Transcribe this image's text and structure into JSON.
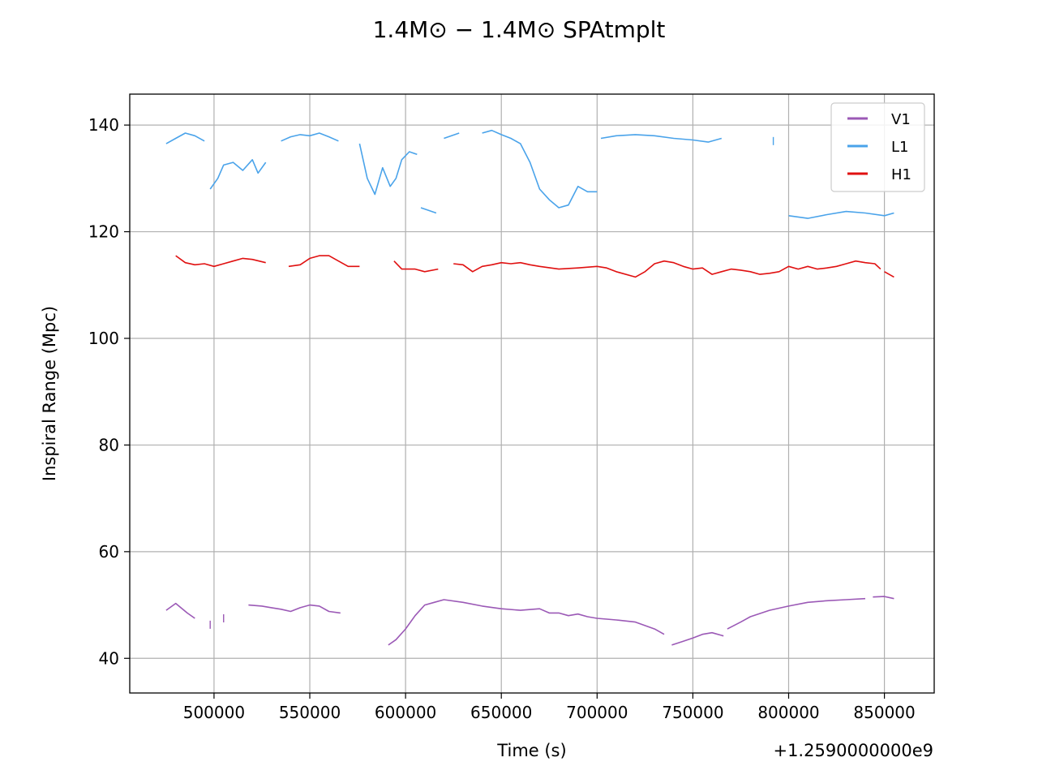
{
  "chart_data": {
    "type": "line",
    "title": "1.4M⊙ − 1.4M⊙ SPAtmplt",
    "xlabel": "Time (s)",
    "x_offset_label": "+1.2590000000e9",
    "ylabel": "Inspiral Range (Mpc)",
    "xlim": [
      456000,
      876000
    ],
    "ylim": [
      33.5,
      145.8
    ],
    "xticks": [
      500000,
      550000,
      600000,
      650000,
      700000,
      750000,
      800000,
      850000
    ],
    "xtick_labels": [
      "500000",
      "550000",
      "600000",
      "650000",
      "700000",
      "750000",
      "800000",
      "850000"
    ],
    "yticks": [
      40,
      60,
      80,
      100,
      120,
      140
    ],
    "ytick_labels": [
      "40",
      "60",
      "80",
      "100",
      "120",
      "140"
    ],
    "grid": true,
    "legend_position": "top-right",
    "series": [
      {
        "name": "V1",
        "color": "#9b59b6",
        "segments": [
          [
            [
              475000,
              49.0
            ],
            [
              480000,
              50.3
            ],
            [
              486000,
              48.5
            ],
            [
              490000,
              47.5
            ]
          ],
          [
            [
              498000,
              46.3
            ]
          ],
          [
            [
              505000,
              47.5
            ]
          ],
          [
            [
              518000,
              50.0
            ],
            [
              525000,
              49.8
            ],
            [
              530000,
              49.5
            ],
            [
              535000,
              49.2
            ],
            [
              540000,
              48.8
            ],
            [
              545000,
              49.5
            ],
            [
              550000,
              50.0
            ],
            [
              555000,
              49.8
            ],
            [
              560000,
              48.8
            ],
            [
              566000,
              48.5
            ]
          ],
          [
            [
              591000,
              42.5
            ],
            [
              595000,
              43.5
            ],
            [
              600000,
              45.5
            ],
            [
              605000,
              48.0
            ],
            [
              610000,
              50.0
            ],
            [
              615000,
              50.5
            ],
            [
              620000,
              51.0
            ],
            [
              630000,
              50.5
            ],
            [
              640000,
              49.8
            ],
            [
              650000,
              49.3
            ],
            [
              660000,
              49.0
            ],
            [
              670000,
              49.3
            ],
            [
              675000,
              48.5
            ],
            [
              680000,
              48.5
            ],
            [
              685000,
              48.0
            ],
            [
              690000,
              48.3
            ],
            [
              695000,
              47.8
            ],
            [
              700000,
              47.5
            ],
            [
              710000,
              47.2
            ],
            [
              720000,
              46.8
            ],
            [
              730000,
              45.5
            ],
            [
              735000,
              44.5
            ]
          ],
          [
            [
              739000,
              42.5
            ],
            [
              745000,
              43.2
            ],
            [
              750000,
              43.8
            ],
            [
              755000,
              44.5
            ],
            [
              760000,
              44.8
            ],
            [
              766000,
              44.2
            ]
          ],
          [
            [
              768000,
              45.5
            ],
            [
              775000,
              46.8
            ],
            [
              780000,
              47.8
            ],
            [
              790000,
              49.0
            ],
            [
              800000,
              49.8
            ],
            [
              810000,
              50.5
            ],
            [
              820000,
              50.8
            ],
            [
              830000,
              51.0
            ],
            [
              840000,
              51.2
            ]
          ],
          [
            [
              844000,
              51.5
            ],
            [
              850000,
              51.6
            ],
            [
              855000,
              51.2
            ]
          ]
        ]
      },
      {
        "name": "L1",
        "color": "#4aa3ea",
        "segments": [
          [
            [
              475000,
              136.5
            ],
            [
              480000,
              137.5
            ],
            [
              485000,
              138.5
            ],
            [
              490000,
              138.0
            ],
            [
              495000,
              137.0
            ]
          ],
          [
            [
              498000,
              128.0
            ],
            [
              502000,
              130.0
            ],
            [
              505000,
              132.5
            ],
            [
              510000,
              133.0
            ],
            [
              515000,
              131.5
            ],
            [
              520000,
              133.5
            ],
            [
              523000,
              131.0
            ],
            [
              527000,
              133.0
            ]
          ],
          [
            [
              535000,
              137.0
            ],
            [
              540000,
              137.8
            ],
            [
              545000,
              138.2
            ],
            [
              550000,
              138.0
            ],
            [
              555000,
              138.5
            ],
            [
              560000,
              137.8
            ],
            [
              565000,
              137.0
            ]
          ],
          [
            [
              576000,
              136.5
            ],
            [
              580000,
              130.0
            ],
            [
              584000,
              127.0
            ],
            [
              588000,
              132.0
            ],
            [
              592000,
              128.5
            ],
            [
              595000,
              130.0
            ],
            [
              598000,
              133.5
            ],
            [
              602000,
              135.0
            ],
            [
              606000,
              134.5
            ]
          ],
          [
            [
              608000,
              124.5
            ],
            [
              612000,
              124.0
            ],
            [
              616000,
              123.5
            ]
          ],
          [
            [
              620000,
              137.5
            ],
            [
              624000,
              138.0
            ],
            [
              628000,
              138.5
            ]
          ],
          [
            [
              640000,
              138.5
            ],
            [
              645000,
              139.0
            ],
            [
              650000,
              138.2
            ],
            [
              655000,
              137.5
            ],
            [
              660000,
              136.5
            ],
            [
              665000,
              133.0
            ],
            [
              670000,
              128.0
            ],
            [
              675000,
              126.0
            ],
            [
              680000,
              124.5
            ],
            [
              685000,
              125.0
            ],
            [
              690000,
              128.5
            ],
            [
              695000,
              127.5
            ],
            [
              700000,
              127.5
            ]
          ],
          [
            [
              702000,
              137.5
            ],
            [
              710000,
              138.0
            ],
            [
              720000,
              138.2
            ],
            [
              730000,
              138.0
            ],
            [
              740000,
              137.5
            ],
            [
              750000,
              137.2
            ],
            [
              758000,
              136.8
            ],
            [
              765000,
              137.5
            ]
          ],
          [
            [
              792000,
              137.0
            ]
          ],
          [
            [
              800000,
              123.0
            ],
            [
              810000,
              122.5
            ],
            [
              820000,
              123.2
            ],
            [
              830000,
              123.8
            ],
            [
              840000,
              123.5
            ],
            [
              850000,
              123.0
            ],
            [
              855000,
              123.5
            ]
          ]
        ]
      },
      {
        "name": "H1",
        "color": "#e01010",
        "segments": [
          [
            [
              480000,
              115.5
            ],
            [
              485000,
              114.2
            ],
            [
              490000,
              113.8
            ],
            [
              495000,
              114.0
            ],
            [
              500000,
              113.5
            ],
            [
              505000,
              114.0
            ],
            [
              510000,
              114.5
            ],
            [
              515000,
              115.0
            ],
            [
              520000,
              114.8
            ],
            [
              527000,
              114.2
            ]
          ],
          [
            [
              539000,
              113.5
            ],
            [
              545000,
              113.8
            ],
            [
              550000,
              115.0
            ],
            [
              555000,
              115.5
            ],
            [
              560000,
              115.5
            ],
            [
              565000,
              114.5
            ],
            [
              570000,
              113.5
            ],
            [
              576000,
              113.5
            ]
          ],
          [
            [
              594000,
              114.5
            ],
            [
              598000,
              113.0
            ],
            [
              605000,
              113.0
            ],
            [
              610000,
              112.5
            ],
            [
              617000,
              113.0
            ]
          ],
          [
            [
              625000,
              114.0
            ],
            [
              630000,
              113.8
            ],
            [
              635000,
              112.5
            ],
            [
              640000,
              113.5
            ],
            [
              645000,
              113.8
            ],
            [
              650000,
              114.2
            ],
            [
              655000,
              114.0
            ],
            [
              660000,
              114.2
            ],
            [
              665000,
              113.8
            ],
            [
              670000,
              113.5
            ],
            [
              680000,
              113.0
            ],
            [
              690000,
              113.2
            ],
            [
              700000,
              113.5
            ],
            [
              705000,
              113.2
            ],
            [
              710000,
              112.5
            ],
            [
              720000,
              111.5
            ],
            [
              725000,
              112.5
            ],
            [
              730000,
              114.0
            ],
            [
              735000,
              114.5
            ],
            [
              740000,
              114.2
            ],
            [
              745000,
              113.5
            ],
            [
              750000,
              113.0
            ],
            [
              755000,
              113.2
            ],
            [
              760000,
              112.0
            ],
            [
              765000,
              112.5
            ],
            [
              770000,
              113.0
            ],
            [
              775000,
              112.8
            ],
            [
              780000,
              112.5
            ],
            [
              785000,
              112.0
            ],
            [
              790000,
              112.2
            ],
            [
              795000,
              112.5
            ],
            [
              800000,
              113.5
            ],
            [
              805000,
              113.0
            ],
            [
              810000,
              113.5
            ],
            [
              815000,
              113.0
            ],
            [
              820000,
              113.2
            ],
            [
              825000,
              113.5
            ],
            [
              830000,
              114.0
            ],
            [
              835000,
              114.5
            ],
            [
              840000,
              114.2
            ],
            [
              845000,
              114.0
            ],
            [
              848000,
              113.0
            ]
          ],
          [
            [
              850000,
              112.5
            ],
            [
              855000,
              111.5
            ]
          ]
        ]
      }
    ]
  }
}
